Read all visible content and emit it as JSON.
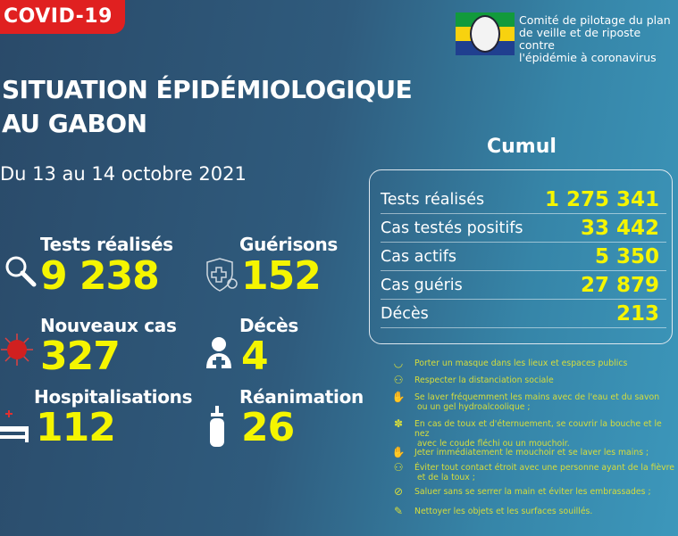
{
  "badge": "COVID-19",
  "title": {
    "line1": "SITUATION ÉPIDÉMIOLOGIQUE",
    "line2": "AU GABON"
  },
  "date": "Du 13 au 14 octobre 2021",
  "org": {
    "line1": "Comité de pilotage du plan",
    "line2": "de veille et de riposte contre",
    "line3": "l'épidémie à coronavirus"
  },
  "stats": [
    {
      "label": "Tests réalisés",
      "value": "9 238",
      "icon": "magnifier-icon"
    },
    {
      "label": "Guérisons",
      "value": "152",
      "icon": "shield-cross-icon"
    },
    {
      "label": "Nouveaux cas",
      "value": "327",
      "icon": "virus-icon"
    },
    {
      "label": "Décès",
      "value": "4",
      "icon": "person-cross-icon"
    },
    {
      "label": "Hospitalisations",
      "value": "112",
      "icon": "hospital-bed-icon"
    },
    {
      "label": "Réanimation",
      "value": "26",
      "icon": "oxygen-tank-icon"
    }
  ],
  "cumul": {
    "title": "Cumul",
    "rows": [
      {
        "label": "Tests réalisés",
        "value": "1 275 341"
      },
      {
        "label": "Cas testés positifs",
        "value": "33 442"
      },
      {
        "label": "Cas actifs",
        "value": "5 350"
      },
      {
        "label": "Cas guéris",
        "value": "27 879"
      },
      {
        "label": "Décès",
        "value": "213"
      }
    ]
  },
  "prevention": [
    {
      "l1": "Porter un masque dans les lieux et espaces publics",
      "l2": ""
    },
    {
      "l1": "Respecter la distanciation sociale",
      "l2": ""
    },
    {
      "l1": "Se laver fréquemment les mains avec de l'eau et du savon",
      "l2": " ou un gel hydroalcoolique ;"
    },
    {
      "l1": "En cas de toux et d'éternuement, se couvrir la bouche et le nez",
      "l2": " avec le coude fléchi ou un mouchoir."
    },
    {
      "l1": "Jeter immédiatement le mouchoir et se laver les mains ;",
      "l2": ""
    },
    {
      "l1": "Éviter tout contact étroit avec une personne ayant de la fièvre",
      "l2": " et de la toux ;"
    },
    {
      "l1": "Saluer sans se serrer la main et éviter les embrassades ;",
      "l2": ""
    },
    {
      "l1": "Nettoyer les objets et les surfaces souillés.",
      "l2": ""
    }
  ],
  "colors": {
    "accent": "#f5f500",
    "badge": "#e02020",
    "prevention": "#d6dd3c"
  }
}
